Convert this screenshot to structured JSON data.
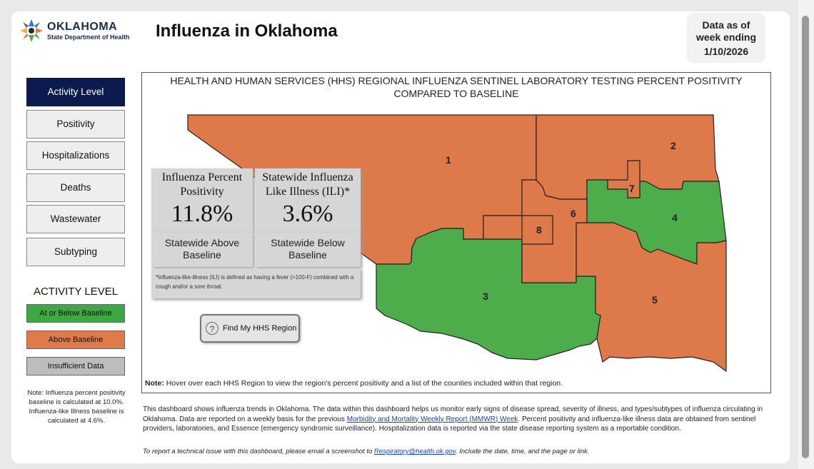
{
  "header": {
    "logo_line1": "OKLAHOMA",
    "logo_line2": "State Department of Health",
    "title": "Influenza in Oklahoma",
    "data_as_of_line1": "Data as of",
    "data_as_of_line2": "week ending",
    "data_as_of_date": "1/10/2026"
  },
  "nav": {
    "items": [
      {
        "label": "Activity Level",
        "active": true
      },
      {
        "label": "Positivity"
      },
      {
        "label": "Hospitalizations"
      },
      {
        "label": "Deaths"
      },
      {
        "label": "Wastewater"
      },
      {
        "label": "Subtyping"
      }
    ]
  },
  "legend": {
    "title": "ACTIVITY LEVEL",
    "items": [
      {
        "label": "At or Below Baseline",
        "color": "#3ea843"
      },
      {
        "label": "Above Baseline",
        "color": "#e07a4a"
      },
      {
        "label": "Insufficient Data",
        "color": "#bdbdbd"
      }
    ],
    "note": "Note: Influenza percent positivity baseline is calculated at 10.0%. Influenza-like Illness baseline is calculated at 4.6%."
  },
  "map": {
    "title": "HEALTH AND HUMAN SERVICES (HHS) REGIONAL INFLUENZA SENTINEL LABORATORY TESTING PERCENT POSITIVITY COMPARED TO BASELINE",
    "colors": {
      "above": "#de7a4a",
      "below": "#4cad4a",
      "border": "#222222"
    },
    "regions": [
      {
        "id": "1",
        "status": "above"
      },
      {
        "id": "2",
        "status": "above"
      },
      {
        "id": "3",
        "status": "below"
      },
      {
        "id": "4",
        "status": "below"
      },
      {
        "id": "5",
        "status": "above"
      },
      {
        "id": "6",
        "status": "above"
      },
      {
        "id": "7",
        "status": "above"
      },
      {
        "id": "8",
        "status": "above"
      }
    ],
    "note_bold": "Note:",
    "note_text": " Hover over each HHS Region to view the region's percent positivity and a list of the counties included within that region.",
    "find_button": "Find My HHS Region",
    "find_icon": "question-circle-icon"
  },
  "cards": {
    "positivity": {
      "label": "Influenza Percent Positivity",
      "value": "11.8%",
      "status": "Statewide Above Baseline"
    },
    "ili": {
      "label": "Statewide Influenza Like Illness (ILI)*",
      "value": "3.6%",
      "status": "Statewide Below Baseline"
    },
    "footnote": "*Influenza-like-illness (ILI) is defined as having a fever (>100◦F) combined with a cough and/or a sore throat."
  },
  "description": {
    "part1": "This dashboard shows influenza trends in Oklahoma. The data within this dashboard helps us monitor early signs of disease spread, severity of illness, and types/subtypes of influenza circulating in Oklahoma. Data are reported on a weekly basis for the previous ",
    "link": "Morbidity and Mortality Weekly Report (MMWR) Week",
    "part2": ". Percent positivity and influenza-like illness data are obtained from sentinel providers, laboratories, and Essence (emergency syndromic surveillance). Hospitalization data is reported via the state disease reporting system as a reportable condition.",
    "tech_part1": "To report a technical issue with this dashboard, please email a screenshot to ",
    "tech_link": "Respiratory@health.ok.gov",
    "tech_part2": ". Include the date, time, and the page or link."
  }
}
